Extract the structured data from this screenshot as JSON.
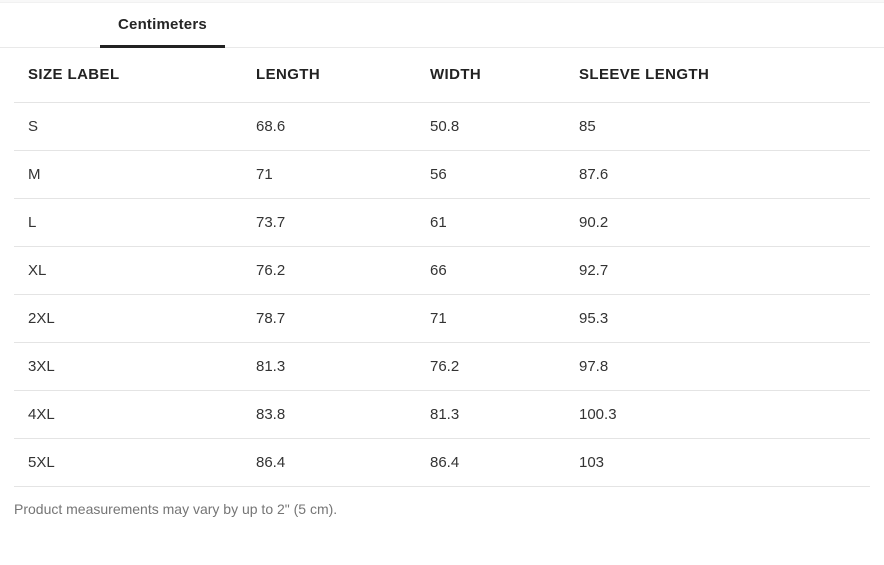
{
  "tabbar": {
    "tabs": [
      {
        "label": "Centimeters",
        "active": true
      }
    ]
  },
  "table": {
    "columns": [
      "SIZE LABEL",
      "LENGTH",
      "WIDTH",
      "SLEEVE LENGTH"
    ],
    "rows": [
      {
        "size_label": "S",
        "length": "68.6",
        "width": "50.8",
        "sleeve_length": "85"
      },
      {
        "size_label": "M",
        "length": "71",
        "width": "56",
        "sleeve_length": "87.6"
      },
      {
        "size_label": "L",
        "length": "73.7",
        "width": "61",
        "sleeve_length": "90.2"
      },
      {
        "size_label": "XL",
        "length": "76.2",
        "width": "66",
        "sleeve_length": "92.7"
      },
      {
        "size_label": "2XL",
        "length": "78.7",
        "width": "71",
        "sleeve_length": "95.3"
      },
      {
        "size_label": "3XL",
        "length": "81.3",
        "width": "76.2",
        "sleeve_length": "97.8"
      },
      {
        "size_label": "4XL",
        "length": "83.8",
        "width": "81.3",
        "sleeve_length": "100.3"
      },
      {
        "size_label": "5XL",
        "length": "86.4",
        "width": "86.4",
        "sleeve_length": "103"
      }
    ]
  },
  "footer": {
    "note": "Product measurements may vary by up to 2\" (5 cm)."
  },
  "colors": {
    "active_tab_underline": "#222222",
    "tab_bar_border": "#e9e9e9",
    "row_divider": "#e4e4e4",
    "header_text": "#222222",
    "body_text": "#333333",
    "muted_text": "#757575"
  }
}
